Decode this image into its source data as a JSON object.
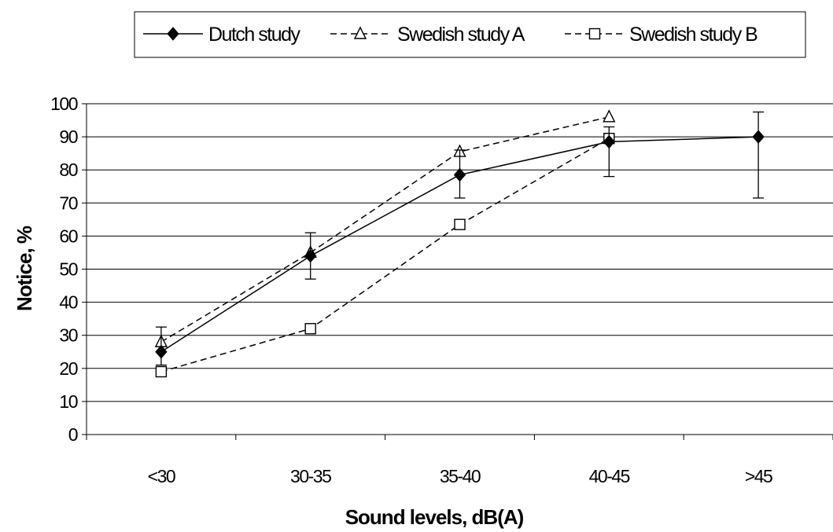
{
  "chart_data": {
    "type": "line",
    "categories": [
      "<30",
      "30-35",
      "35-40",
      "40-45",
      ">45"
    ],
    "xlabel": "Sound levels, dB(A)",
    "ylabel": "Notice, %",
    "ylim": [
      0,
      100
    ],
    "yticks": [
      0,
      10,
      20,
      30,
      40,
      50,
      60,
      70,
      80,
      90,
      100
    ],
    "grid": "horizontal",
    "legend_position": "top",
    "series": [
      {
        "name": "Dutch study",
        "values": [
          25,
          54,
          78.5,
          88.5,
          90
        ],
        "error_low": [
          21,
          47,
          71.5,
          78,
          71.5
        ],
        "error_high": [
          32.5,
          61,
          86,
          93,
          97.5
        ],
        "marker": "diamond-filled",
        "line_style": "solid",
        "color": "#000000"
      },
      {
        "name": "Swedish study A",
        "values": [
          28,
          55,
          85.5,
          96,
          null
        ],
        "marker": "triangle-open",
        "line_style": "dashed",
        "color": "#000000"
      },
      {
        "name": "Swedish study B",
        "values": [
          19,
          32,
          63.5,
          89.5,
          null
        ],
        "marker": "square-open",
        "line_style": "dashed",
        "color": "#000000"
      }
    ]
  }
}
